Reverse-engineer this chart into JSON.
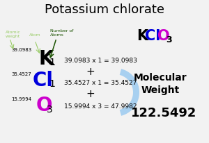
{
  "title": "Potassium chlorate",
  "bg_color": "#f2f2f2",
  "K_color": "black",
  "Cl_color": "#0000dd",
  "O_color": "#cc00cc",
  "K_weight": "39.0983",
  "Cl_weight": "35.4527",
  "O_weight": "15.9994",
  "K_calc": "39.0983 x 1 = 39.0983",
  "Cl_calc": "35.4527 x 1 = 35.4527",
  "O_calc": "15.9994 x 3 = 47.9982",
  "mol_weight": "122.5492",
  "label_atomic": "Atomic\nweight",
  "label_atom": "Atom",
  "label_numatoms": "Number of\nAtoms",
  "arrow_color_light": "#99cc66",
  "arrow_color_dark": "#1a5200",
  "mol_weight_label1": "Molecular",
  "mol_weight_label2": "Weight",
  "bracket_color": "#a8d0f0"
}
